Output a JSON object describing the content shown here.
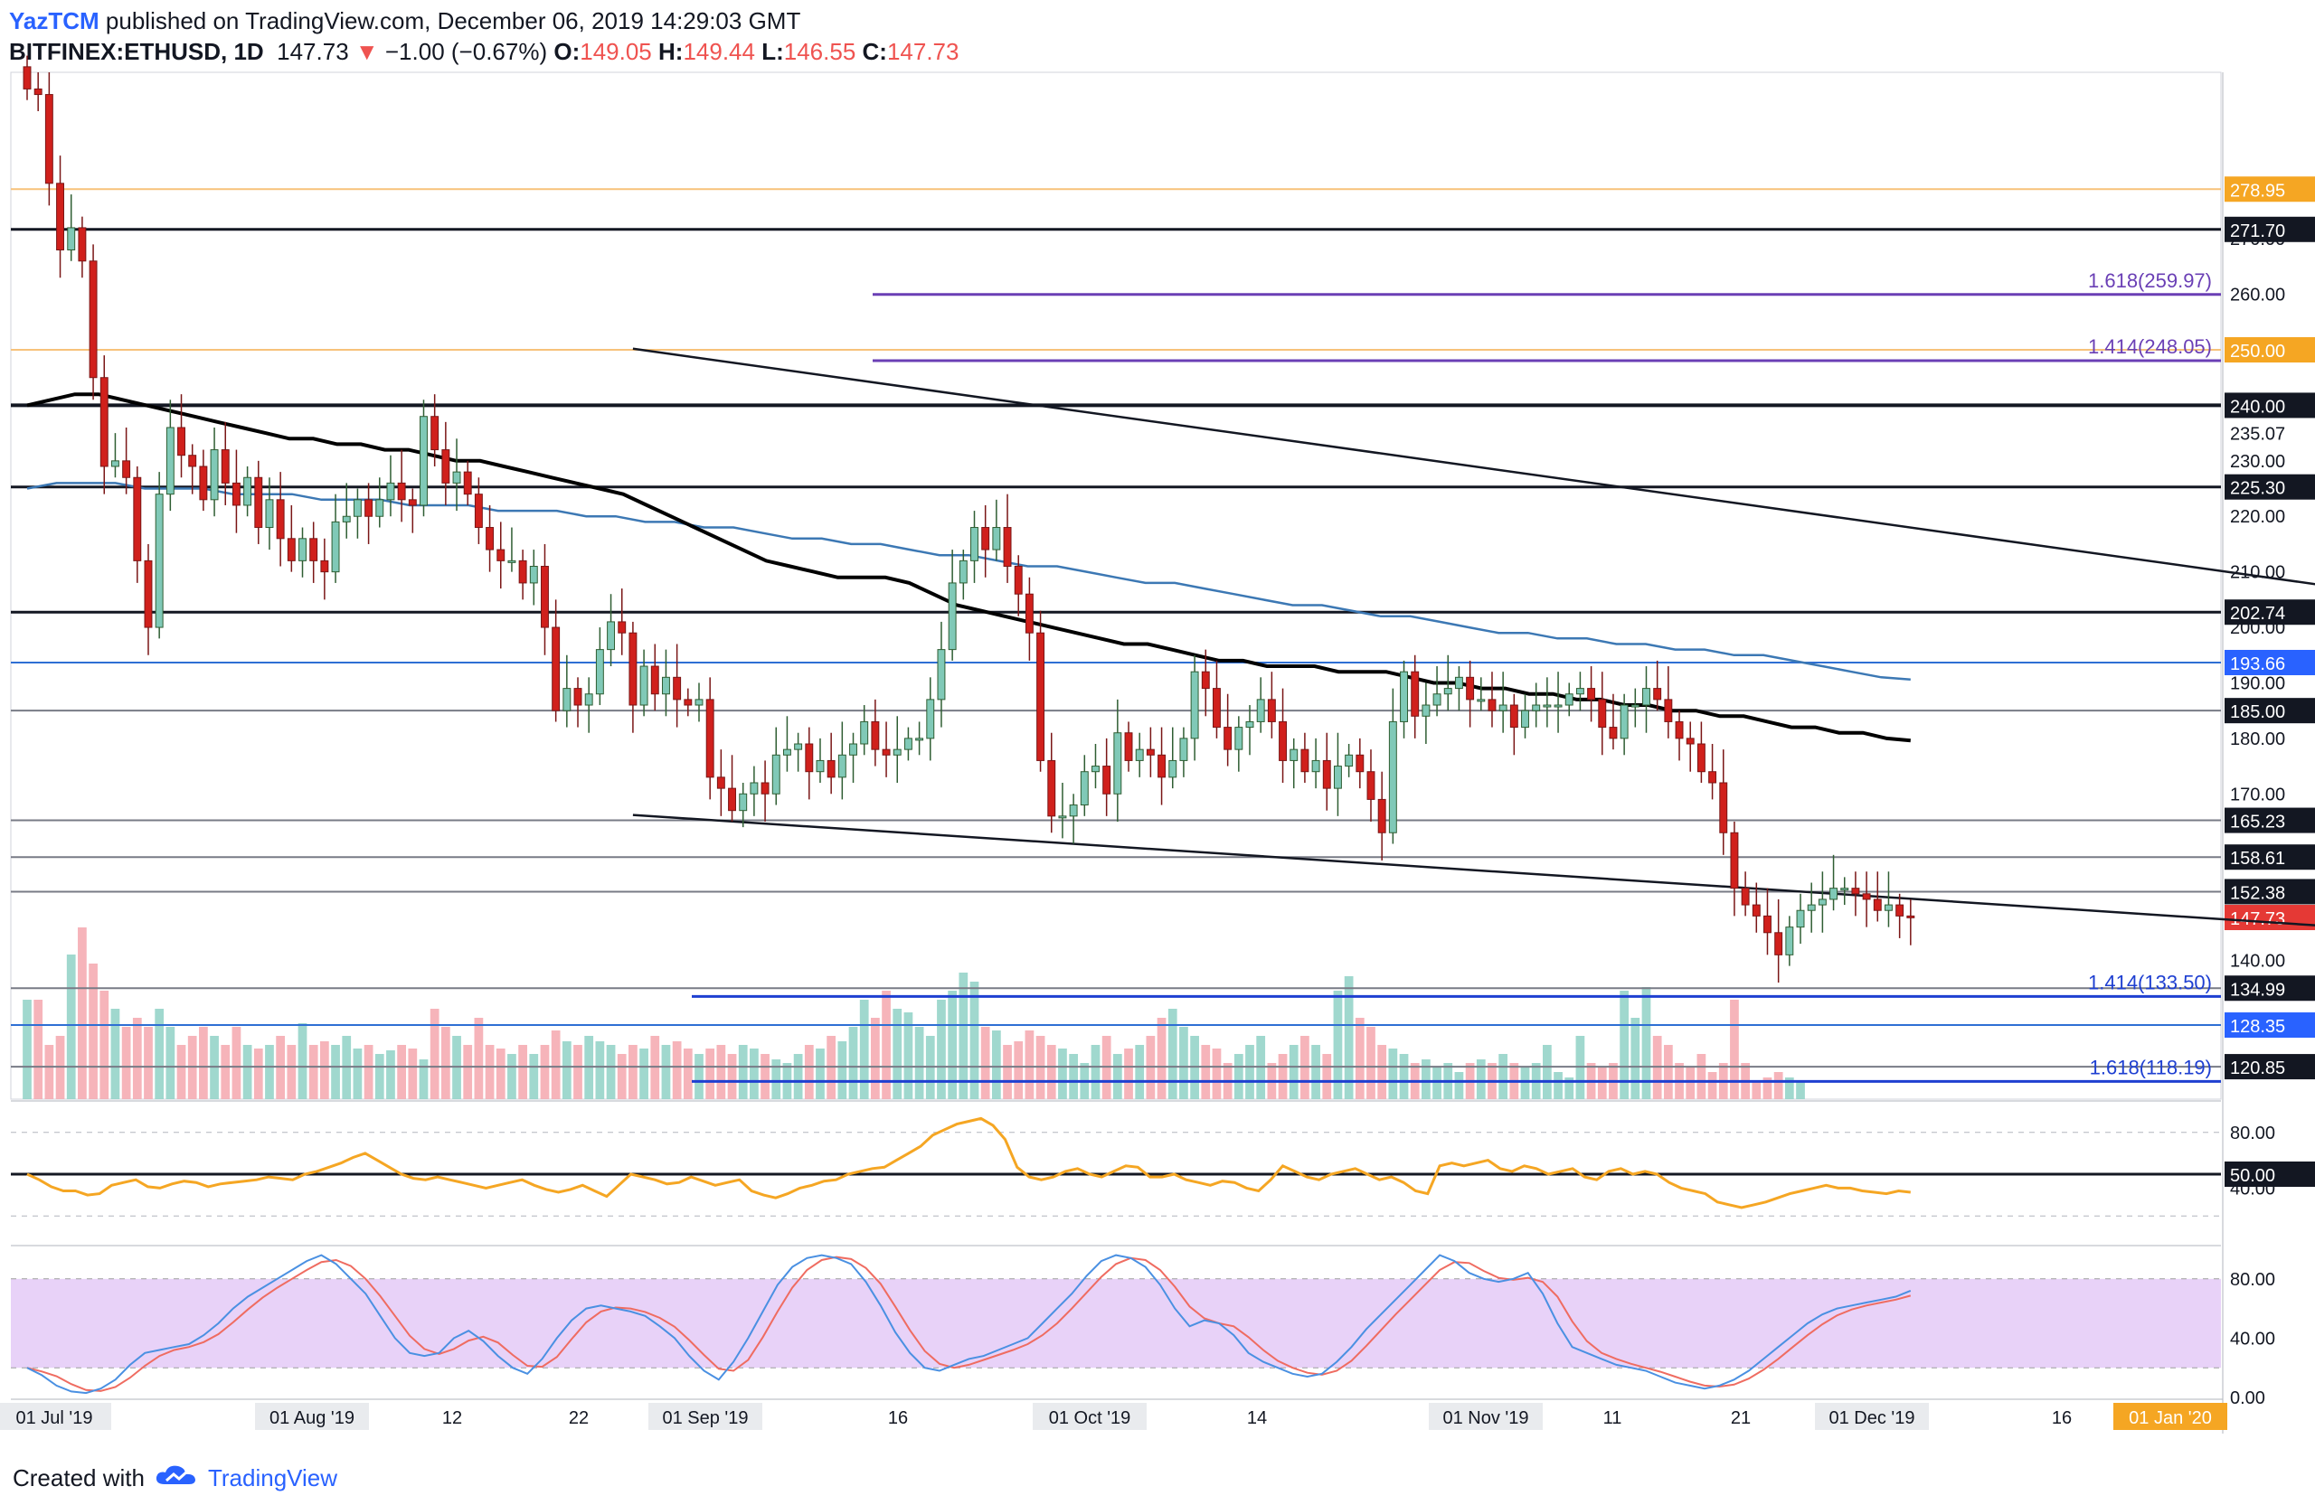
{
  "header": {
    "author": "YazTCM",
    "published_text": "published on TradingView.com, December 06, 2019 14:29:03 GMT",
    "symbol": "BITFINEX:ETHUSD, 1D",
    "last": "147.73",
    "change": "−1.00 (−0.67%)",
    "o_label": "O:",
    "o": "149.05",
    "h_label": "H:",
    "h": "149.44",
    "l_label": "L:",
    "l": "146.55",
    "c_label": "C:",
    "c": "147.73"
  },
  "footer": {
    "created_with": "Created with",
    "brand": "TradingView"
  },
  "colors": {
    "up": "#80c9b7",
    "up_border": "#2f5e33",
    "down": "#d0201c",
    "down_border": "#7a1616",
    "vol_up": "#8fd1c6",
    "vol_down": "#f4a7ae",
    "ma100": "#000000",
    "ma200": "#3c78b4",
    "rsi": "#f5a623",
    "stoch_k": "#4a90e2",
    "stoch_d": "#ef6c61",
    "fib": "#6a3fb5",
    "support_blue": "#1e3fd1",
    "stoch_band": "#e8d2f8"
  },
  "chart_data": [
    {
      "type": "candlestick",
      "title": "",
      "ylim": [
        115,
        300
      ],
      "x_tick_labels": [
        "01 Jul '19",
        "01 Aug '19",
        "12",
        "22",
        "01 Sep '19",
        "16",
        "01 Oct '19",
        "14",
        "01 Nov '19",
        "11",
        "21",
        "01 Dec '19",
        "16",
        "01 Jan '20"
      ],
      "y_tick_labels": [
        "140.00",
        "170.00",
        "180.00",
        "190.00",
        "200.00",
        "210.00",
        "220.00",
        "230.00",
        "260.00",
        "270.00",
        "280.00"
      ],
      "price_levels": [
        {
          "label": "278.95",
          "value": 278.95,
          "style": "orange"
        },
        {
          "label": "271.70",
          "value": 271.7,
          "style": "black"
        },
        {
          "label": "250.00",
          "value": 250.0,
          "style": "orange"
        },
        {
          "label": "240.00",
          "value": 240.0,
          "style": "black-thick"
        },
        {
          "label": "235.07",
          "value": 235.07,
          "style": "none"
        },
        {
          "label": "225.30",
          "value": 225.3,
          "style": "black"
        },
        {
          "label": "202.74",
          "value": 202.74,
          "style": "black"
        },
        {
          "label": "193.66",
          "value": 193.66,
          "style": "blue"
        },
        {
          "label": "185.00",
          "value": 185.0,
          "style": "gray"
        },
        {
          "label": "165.23",
          "value": 165.23,
          "style": "gray"
        },
        {
          "label": "158.61",
          "value": 158.61,
          "style": "gray"
        },
        {
          "label": "152.38",
          "value": 152.38,
          "style": "gray"
        },
        {
          "label": "147.73",
          "value": 147.73,
          "style": "last"
        },
        {
          "label": "134.99",
          "value": 134.99,
          "style": "gray"
        },
        {
          "label": "128.35",
          "value": 128.35,
          "style": "blue"
        },
        {
          "label": "120.85",
          "value": 120.85,
          "style": "gray"
        }
      ],
      "fib_levels": [
        {
          "label": "1.618(259.97)",
          "value": 259.97,
          "color": "purple"
        },
        {
          "label": "1.414(248.05)",
          "value": 248.05,
          "color": "purple"
        },
        {
          "label": "1.414(133.50)",
          "value": 133.5,
          "color": "blue"
        },
        {
          "label": "1.618(118.19)",
          "value": 118.19,
          "color": "blue"
        }
      ],
      "trendlines": [
        {
          "from": [
            55,
            250.2
          ],
          "to": [
            360,
            165.5
          ]
        },
        {
          "from": [
            55,
            166.2
          ],
          "to": [
            360,
            126.5
          ]
        }
      ],
      "closes": [
        297,
        296,
        280,
        268,
        272,
        266,
        245,
        229,
        230,
        227,
        212,
        200,
        224,
        236,
        231,
        229,
        223,
        232,
        226,
        222,
        227,
        218,
        223,
        216,
        212,
        216,
        212,
        210,
        219,
        220,
        223,
        220,
        223,
        226,
        223,
        222,
        238,
        232,
        226,
        228,
        224,
        218,
        214,
        212,
        212,
        208,
        211,
        200,
        185,
        189,
        186,
        188,
        196,
        201,
        199,
        186,
        193,
        188,
        191,
        187,
        186,
        187,
        173,
        171,
        167,
        170,
        172,
        170,
        177,
        178,
        179,
        174,
        176,
        173,
        177,
        179,
        183,
        178,
        177,
        178,
        180,
        180,
        187,
        196,
        208,
        212,
        218,
        214,
        218,
        211,
        206,
        199,
        176,
        166,
        166,
        168,
        174,
        175,
        170,
        181,
        176,
        178,
        177,
        173,
        176,
        180,
        192,
        189,
        182,
        178,
        182,
        183,
        187,
        183,
        176,
        178,
        174,
        176,
        171,
        175,
        177,
        174,
        169,
        163,
        183,
        192,
        184,
        186,
        188,
        189,
        191,
        187,
        187,
        185,
        186,
        182,
        185,
        186,
        186,
        186,
        188,
        189,
        187,
        182,
        180,
        186,
        186,
        189,
        187,
        183,
        180,
        179,
        174,
        172,
        163,
        153,
        150,
        148,
        145,
        141,
        146,
        149,
        150,
        151,
        153,
        153,
        152,
        151,
        149,
        150,
        148,
        147.73
      ],
      "ma100": [
        240,
        241,
        242,
        242,
        241,
        240,
        239,
        238,
        237,
        236,
        235,
        234,
        234,
        233,
        233,
        232,
        232,
        231,
        230,
        230,
        229,
        228,
        227,
        226,
        225,
        224,
        222,
        220,
        218,
        216,
        214,
        212,
        211,
        210,
        209,
        209,
        209,
        208,
        206,
        204,
        203,
        202,
        201,
        200,
        199,
        198,
        197,
        197,
        196,
        195,
        194,
        194,
        193,
        193,
        193,
        192,
        192,
        192,
        191,
        190,
        190,
        189,
        189,
        188,
        188,
        187,
        187,
        186,
        186,
        185,
        185,
        184,
        184,
        183,
        182,
        182,
        181,
        181,
        180,
        179.6
      ],
      "ma200": [
        225,
        226,
        226,
        226,
        225,
        225,
        225,
        224,
        224,
        224,
        223,
        223,
        223,
        222,
        222,
        222,
        221,
        221,
        221,
        220,
        220,
        219,
        219,
        218,
        218,
        217,
        216,
        216,
        215,
        215,
        214,
        213,
        213,
        212,
        211,
        211,
        210,
        209,
        208,
        208,
        207,
        206,
        205,
        204,
        204,
        203,
        202,
        202,
        201,
        200,
        199,
        199,
        198,
        198,
        197,
        197,
        196,
        196,
        195,
        195,
        194,
        193,
        192,
        191,
        190.6
      ]
    },
    {
      "type": "line",
      "title": "",
      "ylim": [
        0,
        100
      ],
      "y_tick_labels": [
        "80.00",
        "50.00",
        "40.00"
      ],
      "ref_level": 50,
      "values": [
        50,
        46,
        41,
        38,
        38,
        35,
        36,
        42,
        44,
        46,
        41,
        40,
        43,
        45,
        44,
        41,
        43,
        44,
        45,
        46,
        48,
        47,
        46,
        50,
        52,
        55,
        58,
        62,
        65,
        60,
        55,
        50,
        47,
        46,
        48,
        46,
        44,
        42,
        40,
        42,
        44,
        46,
        42,
        39,
        37,
        39,
        42,
        38,
        34,
        42,
        50,
        48,
        46,
        43,
        44,
        48,
        45,
        42,
        44,
        46,
        38,
        35,
        33,
        36,
        40,
        42,
        45,
        46,
        50,
        52,
        54,
        55,
        60,
        65,
        70,
        78,
        82,
        86,
        88,
        90,
        85,
        75,
        55,
        48,
        46,
        48,
        52,
        54,
        50,
        48,
        52,
        56,
        55,
        48,
        48,
        50,
        46,
        44,
        42,
        45,
        44,
        40,
        38,
        46,
        56,
        52,
        48,
        46,
        50,
        52,
        54,
        50,
        46,
        48,
        44,
        38,
        36,
        56,
        58,
        56,
        58,
        60,
        54,
        52,
        56,
        54,
        50,
        52,
        54,
        48,
        46,
        52,
        54,
        50,
        52,
        50,
        44,
        40,
        38,
        36,
        30,
        28,
        26,
        28,
        30,
        33,
        36,
        38,
        40,
        42,
        40,
        40,
        38,
        37,
        36,
        38,
        37
      ]
    },
    {
      "type": "line",
      "title": "",
      "ylim": [
        0,
        100
      ],
      "y_tick_labels": [
        "80.00",
        "40.00",
        "0.00"
      ],
      "band": [
        20,
        80
      ],
      "series_k": [
        20,
        15,
        8,
        4,
        3,
        6,
        12,
        22,
        30,
        32,
        34,
        36,
        42,
        50,
        60,
        68,
        74,
        80,
        86,
        92,
        96,
        90,
        80,
        70,
        55,
        40,
        30,
        28,
        30,
        40,
        45,
        38,
        28,
        20,
        16,
        26,
        40,
        52,
        60,
        62,
        60,
        58,
        55,
        48,
        40,
        28,
        18,
        12,
        24,
        40,
        58,
        76,
        88,
        94,
        96,
        94,
        90,
        78,
        62,
        44,
        30,
        20,
        18,
        22,
        26,
        28,
        32,
        36,
        40,
        50,
        60,
        70,
        82,
        92,
        96,
        94,
        88,
        76,
        60,
        48,
        52,
        50,
        42,
        30,
        24,
        20,
        16,
        14,
        16,
        24,
        34,
        46,
        56,
        66,
        76,
        86,
        96,
        92,
        84,
        80,
        78,
        80,
        84,
        70,
        50,
        34,
        30,
        26,
        22,
        20,
        18,
        14,
        10,
        8,
        6,
        8,
        12,
        18,
        26,
        34,
        42,
        50,
        56,
        60,
        62,
        64,
        66,
        68,
        72
      ]
    },
    {
      "type": "bar",
      "title": "",
      "note": "volume (relative)",
      "values": [
        0.55,
        0.55,
        0.3,
        0.35,
        0.8,
        0.95,
        0.75,
        0.6,
        0.5,
        0.4,
        0.45,
        0.4,
        0.5,
        0.4,
        0.3,
        0.35,
        0.4,
        0.35,
        0.3,
        0.4,
        0.3,
        0.28,
        0.3,
        0.35,
        0.3,
        0.42,
        0.3,
        0.32,
        0.3,
        0.35,
        0.28,
        0.3,
        0.25,
        0.27,
        0.3,
        0.28,
        0.22,
        0.5,
        0.4,
        0.35,
        0.3,
        0.45,
        0.3,
        0.28,
        0.25,
        0.3,
        0.25,
        0.3,
        0.38,
        0.32,
        0.3,
        0.35,
        0.32,
        0.3,
        0.25,
        0.3,
        0.28,
        0.35,
        0.3,
        0.32,
        0.28,
        0.25,
        0.28,
        0.3,
        0.25,
        0.3,
        0.28,
        0.25,
        0.22,
        0.2,
        0.25,
        0.3,
        0.28,
        0.35,
        0.32,
        0.4,
        0.55,
        0.45,
        0.6,
        0.5,
        0.48,
        0.4,
        0.35,
        0.55,
        0.6,
        0.7,
        0.65,
        0.4,
        0.38,
        0.3,
        0.32,
        0.38,
        0.35,
        0.3,
        0.28,
        0.25,
        0.2,
        0.3,
        0.35,
        0.25,
        0.28,
        0.3,
        0.35,
        0.45,
        0.5,
        0.4,
        0.35,
        0.3,
        0.28,
        0.2,
        0.25,
        0.3,
        0.35,
        0.2,
        0.25,
        0.3,
        0.35,
        0.3,
        0.25,
        0.6,
        0.68,
        0.45,
        0.4,
        0.3,
        0.28,
        0.25,
        0.2,
        0.22,
        0.18,
        0.2,
        0.15,
        0.2,
        0.22,
        0.2,
        0.25,
        0.2,
        0.18,
        0.2,
        0.3,
        0.15,
        0.12,
        0.35,
        0.2,
        0.18,
        0.2,
        0.6,
        0.45,
        0.62,
        0.35,
        0.3,
        0.2,
        0.18,
        0.25,
        0.15,
        0.2,
        0.55,
        0.2,
        0.1,
        0.12,
        0.15,
        0.12,
        0.1
      ]
    }
  ]
}
